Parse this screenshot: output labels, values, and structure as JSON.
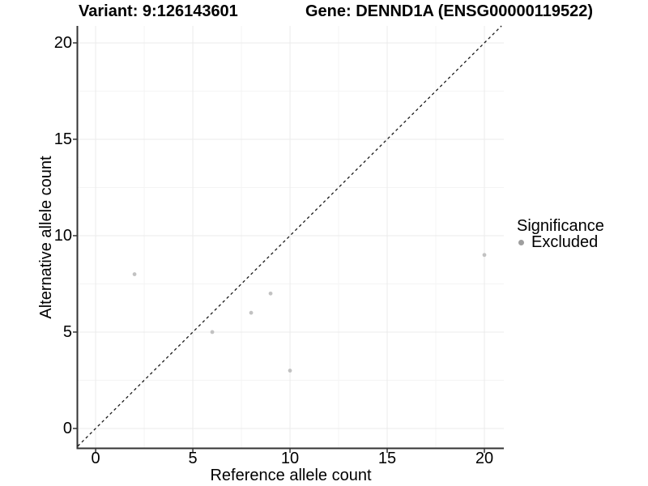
{
  "chart_data": {
    "type": "scatter",
    "title_left": "Variant: 9:126143601",
    "title_right": "Gene: DENND1A (ENSG00000119522)",
    "xlabel": "Reference allele count",
    "ylabel": "Alternative allele count",
    "xlim": [
      -0.92,
      21.0
    ],
    "ylim": [
      -1.01,
      20.88
    ],
    "x_ticks": [
      0,
      5,
      10,
      15,
      20
    ],
    "y_ticks": [
      0,
      5,
      10,
      15,
      20
    ],
    "x_minor_ticks": [
      2.5,
      7.5,
      12.5,
      17.5
    ],
    "y_minor_ticks": [
      2.5,
      7.5,
      12.5,
      17.5
    ],
    "points": [
      {
        "x": 2,
        "y": 8,
        "significance": "Excluded"
      },
      {
        "x": 6,
        "y": 5,
        "significance": "Excluded"
      },
      {
        "x": 8,
        "y": 6,
        "significance": "Excluded"
      },
      {
        "x": 9,
        "y": 7,
        "significance": "Excluded"
      },
      {
        "x": 10,
        "y": 3,
        "significance": "Excluded"
      },
      {
        "x": 20,
        "y": 9,
        "significance": "Excluded"
      }
    ],
    "identity_line": {
      "slope": 1,
      "intercept": 0,
      "style": "dashed"
    },
    "legend": {
      "title": "Significance",
      "position": "right",
      "items": [
        {
          "label": "Excluded",
          "color": "#9e9e9e"
        }
      ]
    },
    "grid": true,
    "colors": {
      "point": "#c2c2c2",
      "legend_key": "#9e9e9e",
      "axis_line": "#333333",
      "tick_mark": "#333333",
      "grid_major": "#ebebeb",
      "grid_minor": "#f4f4f4",
      "identity_line": "#1a1a1a",
      "text": "#000000",
      "background": "#ffffff"
    }
  }
}
